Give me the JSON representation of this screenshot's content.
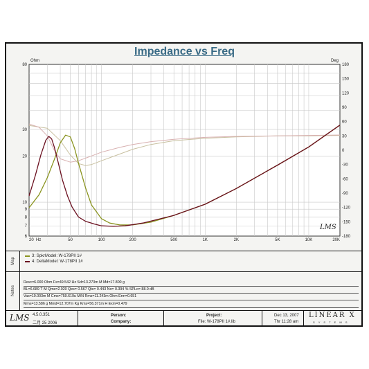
{
  "chart_data": {
    "type": "line",
    "title": "Impedance vs Freq",
    "x_scale": "log",
    "xlim": [
      20,
      20000
    ],
    "y_left": {
      "unit": "Ohm",
      "scale": "log",
      "lim": [
        6,
        80
      ],
      "ticks": [
        80,
        30,
        20,
        10,
        9,
        8,
        7,
        6
      ]
    },
    "y_right": {
      "unit": "Deg",
      "lim": [
        -180,
        180
      ],
      "ticks": [
        180,
        150,
        120,
        90,
        60,
        30,
        0,
        -30,
        -60,
        -90,
        -120,
        -150,
        -180
      ]
    },
    "x_ticks": [
      {
        "v": 20,
        "label": "20"
      },
      {
        "v": 50,
        "label": "50"
      },
      {
        "v": 100,
        "label": "100"
      },
      {
        "v": 200,
        "label": "200"
      },
      {
        "v": 500,
        "label": "500"
      },
      {
        "v": 1000,
        "label": "1K"
      },
      {
        "v": 2000,
        "label": "2K"
      },
      {
        "v": 5000,
        "label": "5K"
      },
      {
        "v": 10000,
        "label": "10K"
      },
      {
        "v": 20000,
        "label": "20K"
      }
    ],
    "x_unit": "Hz",
    "series": [
      {
        "name": "3: SpkrModel: W-178PII 1#",
        "kind": "impedance",
        "color": "#8a9420",
        "x": [
          20,
          25,
          30,
          35,
          40,
          45,
          50,
          55,
          60,
          70,
          80,
          100,
          120,
          150,
          200,
          300,
          500,
          1000,
          2000,
          5000,
          10000,
          20000
        ],
        "y": [
          9.2,
          11.2,
          14.5,
          19.0,
          24.5,
          27.5,
          26.8,
          22.5,
          18.0,
          12.5,
          9.6,
          7.8,
          7.3,
          7.1,
          7.1,
          7.4,
          8.2,
          9.7,
          12.3,
          17.5,
          23.0,
          32.0
        ]
      },
      {
        "name": "4: DeltaModel: W-178PII 1#",
        "kind": "impedance",
        "color": "#6b1020",
        "x": [
          20,
          23,
          26,
          29,
          31,
          33,
          35,
          38,
          42,
          47,
          52,
          60,
          70,
          85,
          100,
          130,
          170,
          250,
          500,
          1000,
          2000,
          5000,
          10000,
          20000
        ],
        "y": [
          11.0,
          15.0,
          20.5,
          25.5,
          27.0,
          26.0,
          23.0,
          18.5,
          14.0,
          11.0,
          9.3,
          8.0,
          7.5,
          7.2,
          7.0,
          6.95,
          7.0,
          7.3,
          8.2,
          9.7,
          12.3,
          17.5,
          23.0,
          32.0
        ]
      },
      {
        "name": "3: SpkrModel: W-178PII 1# phase",
        "kind": "phase",
        "color": "#c8c0a0",
        "x": [
          20,
          30,
          40,
          50,
          60,
          70,
          80,
          100,
          150,
          200,
          300,
          500,
          1000,
          2000,
          5000,
          10000,
          20000
        ],
        "y": [
          52,
          46,
          20,
          -10,
          -28,
          -32,
          -30,
          -22,
          -8,
          2,
          12,
          20,
          25,
          28,
          30,
          30,
          31
        ]
      },
      {
        "name": "4: DeltaModel: W-178PII 1# phase",
        "kind": "phase",
        "color": "#d8b0b0",
        "x": [
          20,
          25,
          30,
          35,
          40,
          50,
          60,
          80,
          100,
          150,
          200,
          300,
          500,
          1000,
          2000,
          5000,
          10000,
          20000
        ],
        "y": [
          55,
          48,
          30,
          0,
          -18,
          -25,
          -22,
          -12,
          -4,
          6,
          12,
          18,
          23,
          27,
          29,
          30,
          31,
          32
        ]
      }
    ]
  },
  "chart_logo": "LMS",
  "legend_tab": "Map",
  "legend": [
    {
      "label": "3: SpkrModel: W-178PII 1#",
      "color": "#8a9420"
    },
    {
      "label": "4: DeltaModel: W-178PII 1#",
      "color": "#6b1020"
    }
  ],
  "notes_tab": "Notes",
  "notes": [
    "Revc=6.000 Ohm  Fs=49.542 Hz  Sd=13.273m M    Md=17.800 g",
    "BL=6.689 T·M  Qms=2.020  Qes= 0.567  Qts= 0.443  No= 0.394 %  SPLo= 88.0 dB",
    "Vas=19.003m M    Cms=759.619u M/N  Rms=11.243m Ohm  Erm=0.651",
    "Mms=13.586 g  Mmd=12.707m Kg  Kms=56.371m H  Exm=0.479"
  ],
  "footer": {
    "logo": "LMS",
    "version": "4.5.0.351",
    "date_local": "二月 25 2006",
    "person_label": "Person:",
    "company_label": "Company:",
    "project_label": "Project:",
    "file_label": "File: W-178PII 1#.lib",
    "date": "Dec 13, 2007",
    "time": "Thr 11:28 am",
    "brand": "LINEAR X",
    "brand_sub": "S Y S T E M S"
  }
}
